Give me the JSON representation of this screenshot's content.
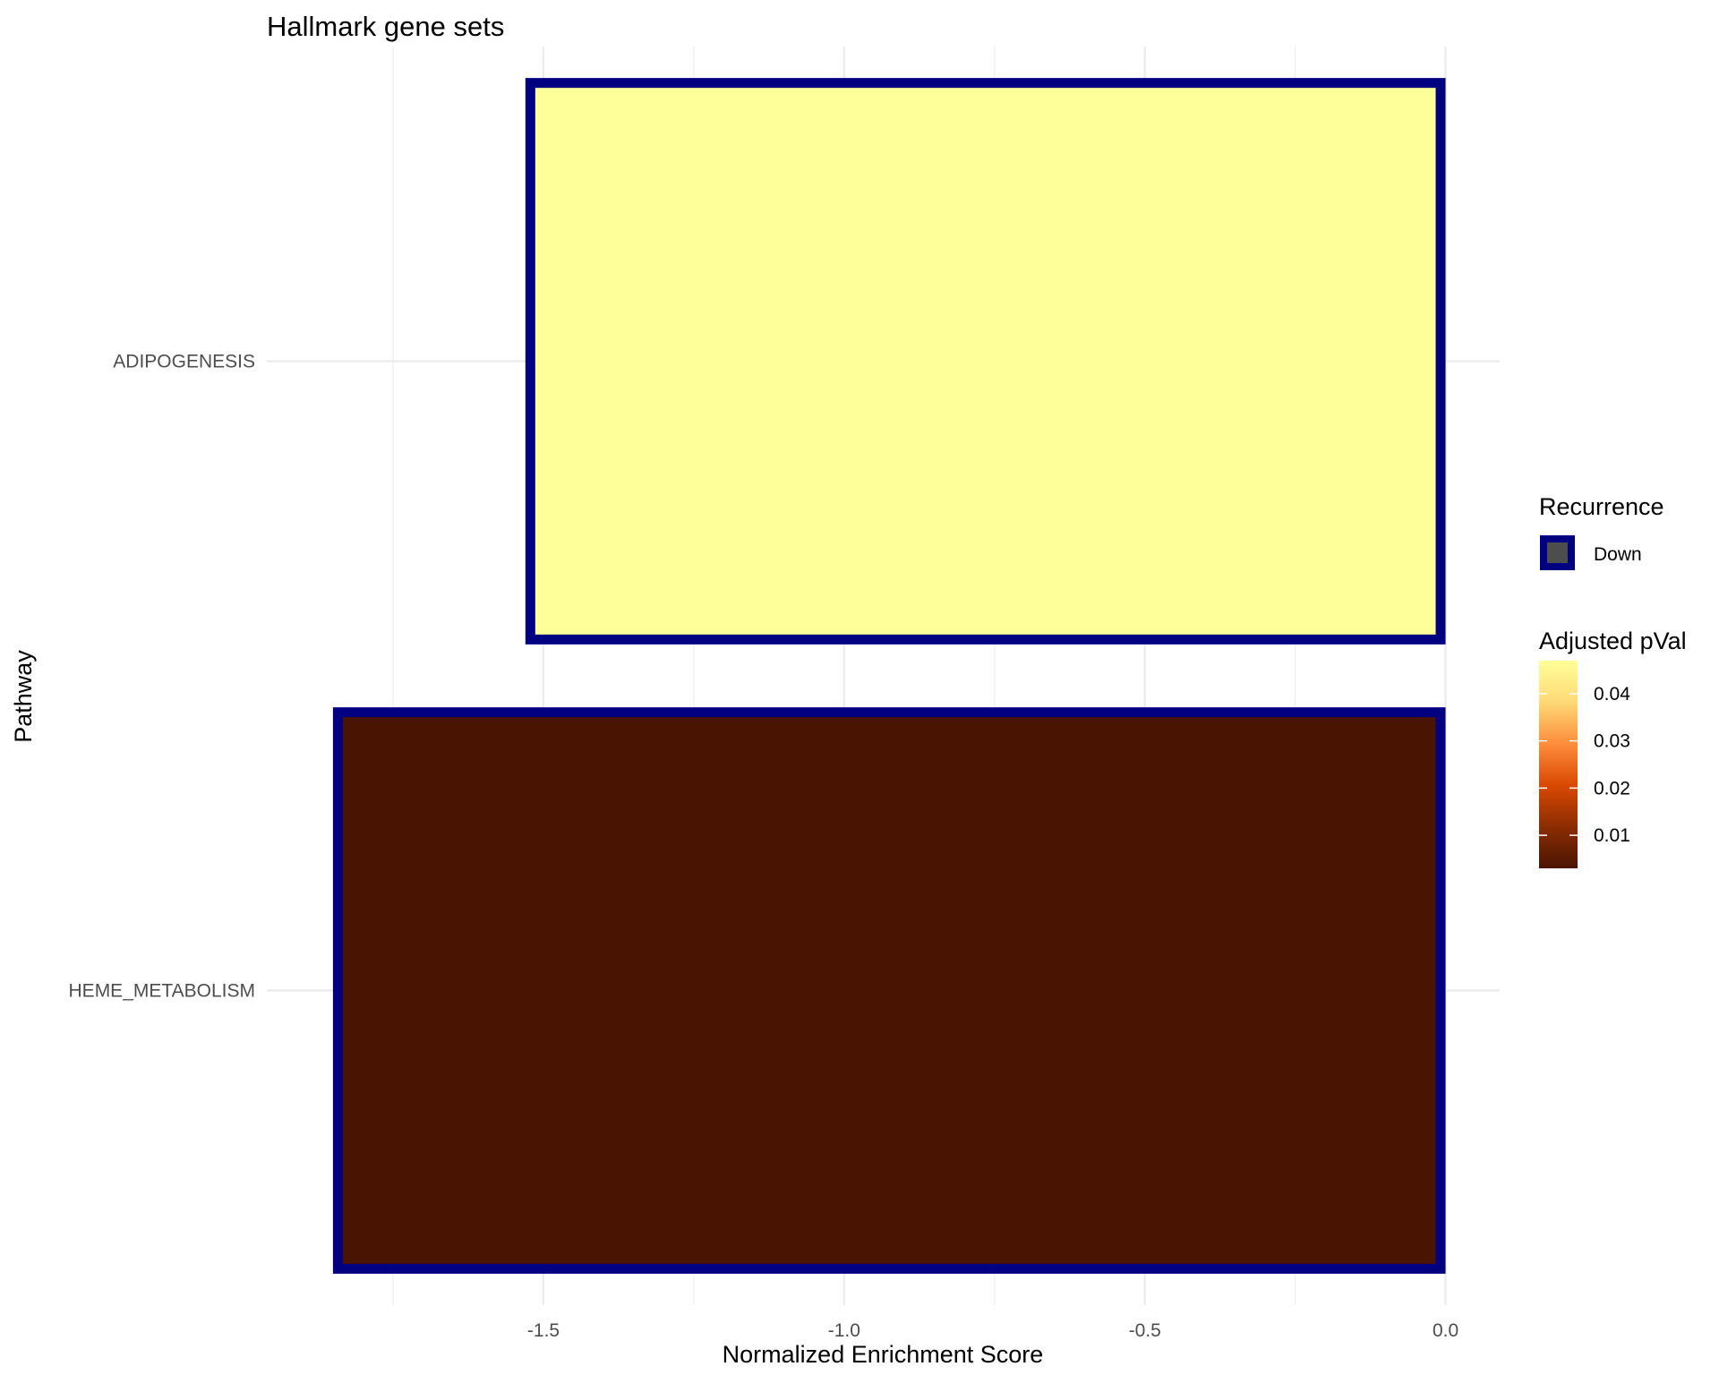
{
  "chart_data": {
    "type": "bar",
    "orientation": "horizontal",
    "title": "Hallmark gene sets",
    "xlabel": "Normalized Enrichment Score",
    "ylabel": "Pathway",
    "xlim": [
      -1.96,
      0.09
    ],
    "x_ticks": [
      -1.5,
      -1.0,
      -0.5,
      0.0
    ],
    "x_tick_labels": [
      "-1.5",
      "-1.0",
      "-0.5",
      "0.0"
    ],
    "grid": true,
    "categories": [
      "ADIPOGENESIS",
      "HEME_METABOLISM"
    ],
    "values": [
      -1.53,
      -1.85
    ],
    "adjusted_pval": [
      0.047,
      0.003
    ],
    "recurrence": [
      "Down",
      "Down"
    ],
    "bar_outline_color": "#000080",
    "legend_position": "right",
    "legend_recurrence": {
      "title": "Recurrence",
      "items": [
        {
          "label": "Down",
          "fill": "#4d4d4d",
          "outline": "#000080"
        }
      ]
    },
    "legend_colorbar": {
      "title": "Adjusted pVal",
      "range": [
        0.003,
        0.047
      ],
      "ticks": [
        0.01,
        0.02,
        0.03,
        0.04
      ],
      "tick_labels": [
        "0.01",
        "0.02",
        "0.03",
        "0.04"
      ],
      "colors": [
        "#4a1402",
        "#8c2d04",
        "#d94801",
        "#fd8d3c",
        "#fed976",
        "#ffff99"
      ]
    }
  }
}
